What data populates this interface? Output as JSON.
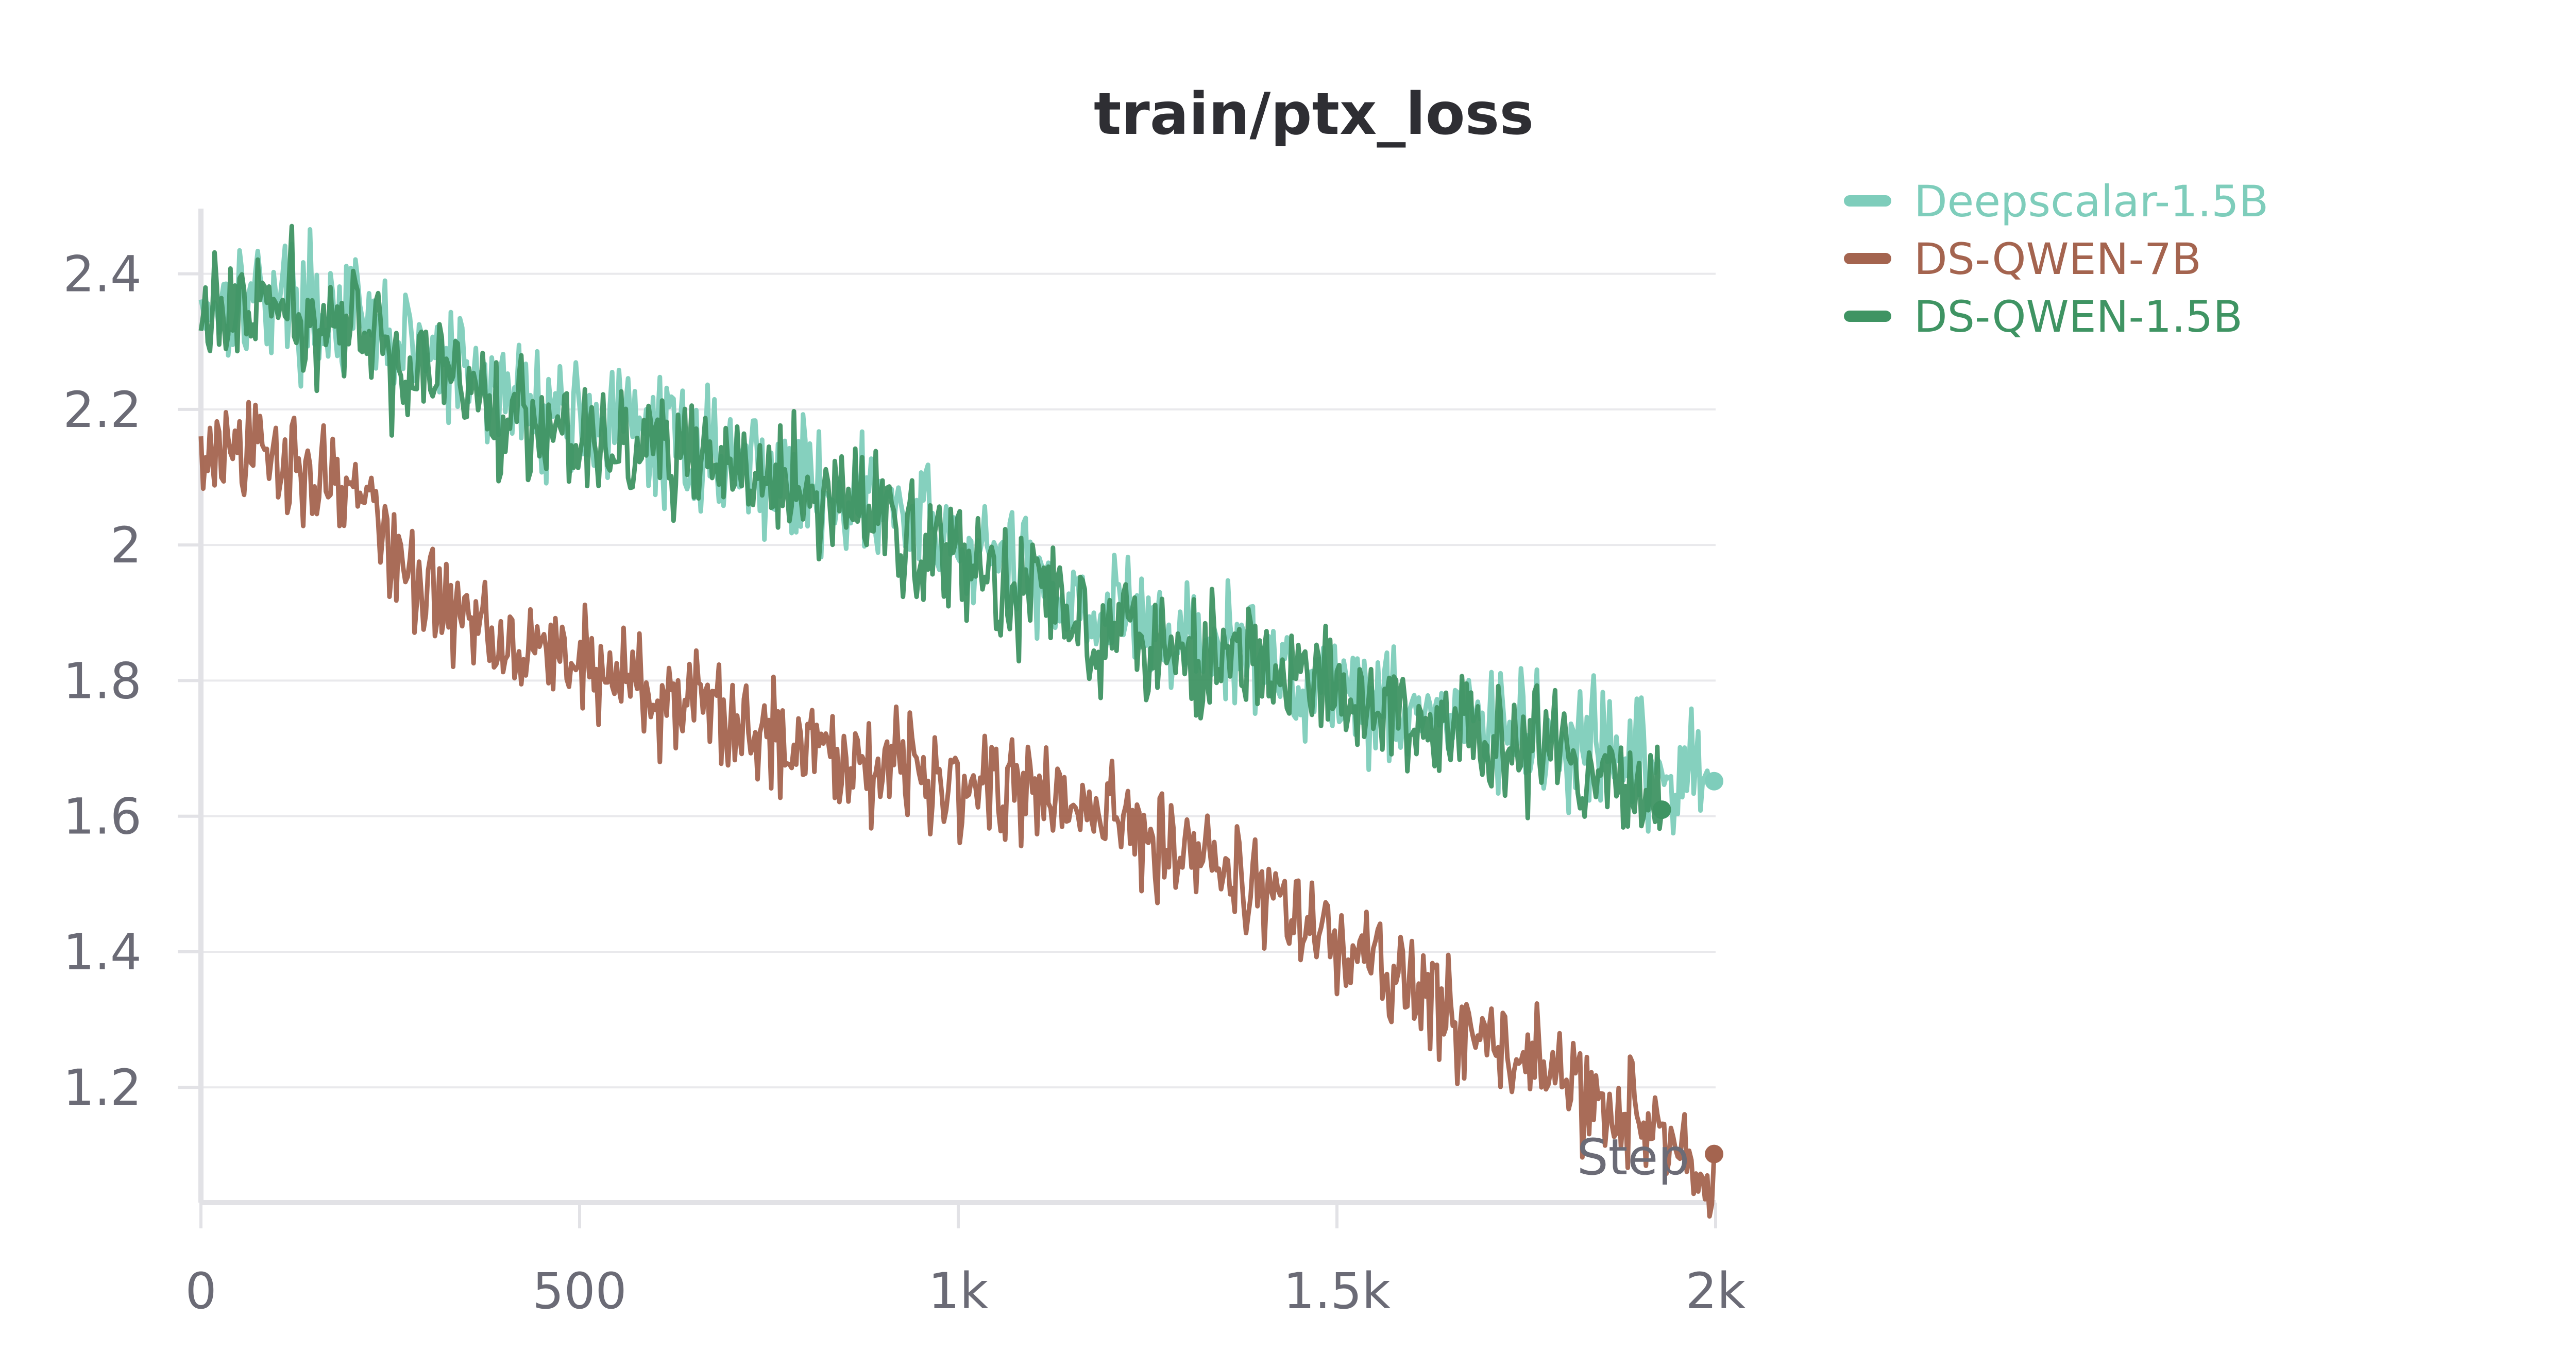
{
  "chart_data": {
    "type": "line",
    "title": "train/ptx_loss",
    "xlabel": "Step",
    "ylabel": "",
    "xlim": [
      0,
      2000
    ],
    "ylim": [
      1.03,
      2.5
    ],
    "grid": true,
    "legend_position": "top-right",
    "x_ticks": [
      0,
      500,
      1000,
      1500,
      2000
    ],
    "x_tick_labels": [
      "0",
      "500",
      "1k",
      "1.5k",
      "2k"
    ],
    "y_ticks": [
      1.2,
      1.4,
      1.6,
      1.8,
      2.0,
      2.2,
      2.4
    ],
    "y_tick_labels": [
      "1.2",
      "1.4",
      "1.6",
      "1.8",
      "2",
      "2.2",
      "2.4"
    ],
    "series": [
      {
        "name": "Deepscalar-1.5B",
        "color": "#7ecdbb",
        "noise": 0.045,
        "x": [
          0,
          100,
          200,
          300,
          400,
          500,
          600,
          700,
          800,
          900,
          1000,
          1100,
          1200,
          1300,
          1400,
          1500,
          1600,
          1700,
          1800,
          1900,
          1950,
          2000
        ],
        "y": [
          2.36,
          2.37,
          2.33,
          2.28,
          2.22,
          2.19,
          2.16,
          2.13,
          2.09,
          2.06,
          2.0,
          1.95,
          1.9,
          1.86,
          1.83,
          1.79,
          1.76,
          1.73,
          1.7,
          1.67,
          1.65,
          1.66
        ]
      },
      {
        "name": "DS-QWEN-7B",
        "color": "#a4644f",
        "noise": 0.04,
        "x": [
          0,
          100,
          200,
          250,
          300,
          400,
          500,
          600,
          700,
          800,
          900,
          1000,
          1100,
          1200,
          1300,
          1400,
          1500,
          1600,
          1700,
          1800,
          1900,
          1950,
          2000
        ],
        "y": [
          2.13,
          2.13,
          2.09,
          2.0,
          1.92,
          1.87,
          1.83,
          1.78,
          1.74,
          1.71,
          1.68,
          1.66,
          1.63,
          1.6,
          1.56,
          1.49,
          1.41,
          1.34,
          1.27,
          1.21,
          1.15,
          1.1,
          1.04
        ]
      },
      {
        "name": "DS-QWEN-1.5B",
        "color": "#3f9463",
        "noise": 0.045,
        "x": [
          0,
          100,
          200,
          300,
          400,
          500,
          600,
          700,
          800,
          900,
          1000,
          1100,
          1200,
          1300,
          1400,
          1500,
          1600,
          1700,
          1800,
          1900,
          1930
        ],
        "y": [
          2.34,
          2.35,
          2.31,
          2.26,
          2.2,
          2.17,
          2.14,
          2.11,
          2.07,
          2.04,
          1.98,
          1.93,
          1.89,
          1.85,
          1.82,
          1.78,
          1.74,
          1.71,
          1.68,
          1.65,
          1.65
        ]
      }
    ]
  }
}
